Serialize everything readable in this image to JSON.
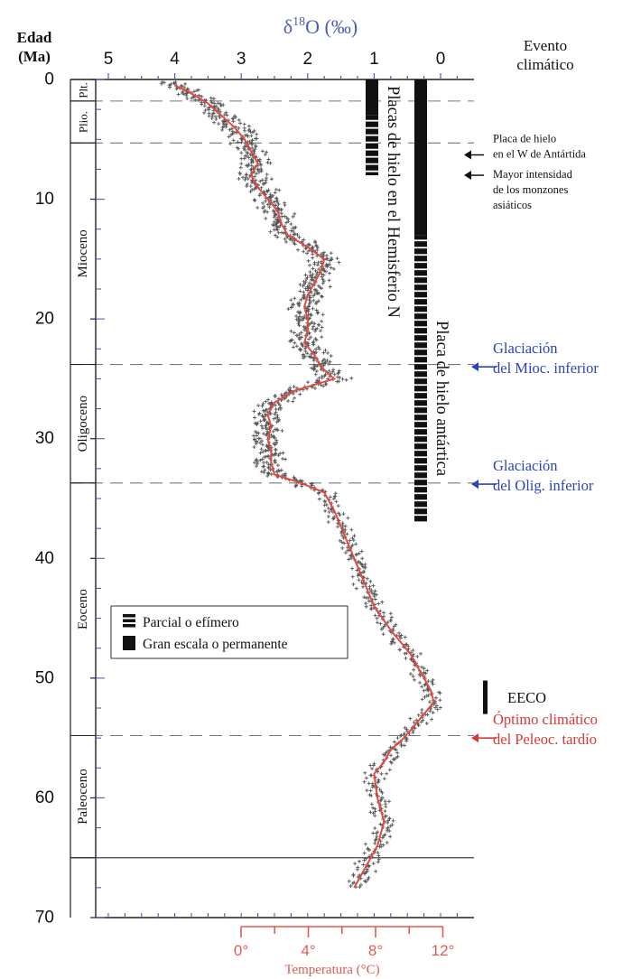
{
  "chart_data": {
    "type": "scatter",
    "title": "δ¹⁸O (‰)",
    "x_axis": {
      "label_prefix": "δ",
      "label_sup": "18",
      "label_suffix": "O (‰)",
      "ticks": [
        "5",
        "4",
        "3",
        "2",
        "1",
        "0"
      ],
      "reversed": true,
      "range": [
        5.4,
        -0.3
      ]
    },
    "y_axis": {
      "label_line1": "Edad",
      "label_line2": "(Ma)",
      "ticks": [
        "0",
        "10",
        "20",
        "30",
        "40",
        "50",
        "60",
        "70"
      ],
      "range": [
        0,
        70
      ]
    },
    "temperature_axis": {
      "label": "Temperatura (°C)",
      "ticks": [
        "0°",
        "4°",
        "8°",
        "12°"
      ],
      "values": [
        0,
        4,
        8,
        12
      ]
    },
    "event_header": {
      "line1": "Evento",
      "line2": "climático"
    },
    "epochs": [
      {
        "name": "Plt.",
        "top": 0,
        "bottom": 1.8
      },
      {
        "name": "Plio.",
        "top": 1.8,
        "bottom": 5.3
      },
      {
        "name": "Mioceno",
        "top": 5.3,
        "bottom": 23.8
      },
      {
        "name": "Oligoceno",
        "top": 23.8,
        "bottom": 33.7
      },
      {
        "name": "Eoceno",
        "top": 33.7,
        "bottom": 54.8
      },
      {
        "name": "Paleoceno",
        "top": 54.8,
        "bottom": 65
      }
    ],
    "smoothed_curve": [
      [
        0.5,
        4.0
      ],
      [
        1.0,
        3.8
      ],
      [
        2.0,
        3.5
      ],
      [
        3.0,
        3.3
      ],
      [
        4.0,
        3.1
      ],
      [
        5.0,
        2.95
      ],
      [
        6.0,
        2.85
      ],
      [
        7.0,
        2.75
      ],
      [
        8.0,
        2.85
      ],
      [
        9.0,
        2.75
      ],
      [
        10.0,
        2.6
      ],
      [
        11.0,
        2.45
      ],
      [
        12.0,
        2.4
      ],
      [
        13.0,
        2.3
      ],
      [
        14.0,
        2.0
      ],
      [
        15.0,
        1.75
      ],
      [
        16.0,
        1.8
      ],
      [
        17.0,
        1.9
      ],
      [
        18.0,
        2.0
      ],
      [
        19.0,
        2.05
      ],
      [
        20.0,
        2.0
      ],
      [
        21.0,
        2.0
      ],
      [
        22.0,
        2.05
      ],
      [
        23.0,
        1.9
      ],
      [
        24.0,
        1.8
      ],
      [
        25.0,
        1.6
      ],
      [
        26.0,
        2.2
      ],
      [
        27.0,
        2.5
      ],
      [
        28.0,
        2.6
      ],
      [
        29.0,
        2.55
      ],
      [
        30.0,
        2.6
      ],
      [
        31.0,
        2.55
      ],
      [
        32.0,
        2.55
      ],
      [
        33.0,
        2.5
      ],
      [
        33.7,
        2.1
      ],
      [
        34.5,
        1.75
      ],
      [
        36.0,
        1.6
      ],
      [
        38.0,
        1.45
      ],
      [
        40.0,
        1.3
      ],
      [
        42.0,
        1.15
      ],
      [
        44.0,
        1.0
      ],
      [
        46.0,
        0.75
      ],
      [
        48.0,
        0.45
      ],
      [
        50.0,
        0.25
      ],
      [
        51.0,
        0.15
      ],
      [
        52.0,
        0.1
      ],
      [
        53.0,
        0.25
      ],
      [
        54.0,
        0.4
      ],
      [
        55.0,
        0.55
      ],
      [
        56.0,
        0.75
      ],
      [
        57.0,
        0.85
      ],
      [
        58.0,
        1.0
      ],
      [
        60.0,
        0.95
      ],
      [
        62.0,
        0.85
      ],
      [
        64.0,
        0.95
      ],
      [
        65.0,
        1.05
      ],
      [
        66.0,
        1.15
      ],
      [
        67.5,
        1.3
      ]
    ],
    "ice_sheets": {
      "northern": {
        "label": "Placas de hielo en el Hemisferio N",
        "solid": {
          "from": 0,
          "to": 3
        },
        "dashed": {
          "from": 3,
          "to": 8
        }
      },
      "antarctic": {
        "label": "Placa de hielo antártica",
        "solid": {
          "from": 0,
          "to": 13
        },
        "dashed": {
          "from": 13,
          "to": 37
        }
      }
    },
    "events": [
      {
        "lines": [
          "Placa de hielo",
          "en el W de Antártida"
        ],
        "age": 6.3,
        "color": "#111111"
      },
      {
        "lines": [
          "Mayor intensidad",
          "de los monzones",
          "asiáticos"
        ],
        "age": 8.0,
        "color": "#111111"
      },
      {
        "lines": [
          "Glaciación",
          "del Mioc. inferior"
        ],
        "age": 24.0,
        "color": "#2a44b8"
      },
      {
        "lines": [
          "Glaciación",
          "del Olig. inferior"
        ],
        "age": 33.8,
        "color": "#2a44b8"
      },
      {
        "lines": [
          "Óptimo climático",
          "del Peleoc. tardío"
        ],
        "age": 55.0,
        "color": "#d83a36"
      }
    ],
    "eeco": {
      "label": "EECO",
      "from": 50.2,
      "to": 53.0
    },
    "boundary_lines": [
      1.8,
      5.3,
      23.8,
      33.7,
      54.8,
      65
    ],
    "legend": {
      "position": "mid-left",
      "items": [
        "Parcial o efímero",
        "Gran escala o permanente"
      ]
    },
    "colors": {
      "axis_blue": "#4a5fb0",
      "temperature_red": "#e05a55",
      "curve_red": "#e24a40",
      "scatter": "#555555",
      "blue_event": "#2a44b8",
      "red_event": "#d83a36"
    }
  }
}
